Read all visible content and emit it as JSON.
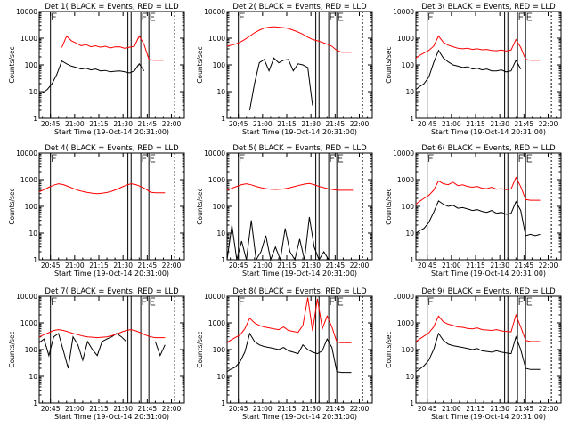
{
  "figure": {
    "ylabel": "Counts/sec",
    "xlabel": "Start Time (19-Oct-14 20:31:00)",
    "xticks": [
      "20:45",
      "21:00",
      "21:15",
      "21:30",
      "21:45",
      "22:00"
    ],
    "yticks": [
      "1",
      "10",
      "100",
      "1000",
      "10000"
    ],
    "colors": {
      "events": "#000000",
      "lld": "#ff0000",
      "axes": "#000000"
    }
  },
  "chart_data": [
    {
      "type": "line",
      "title": "Det 1( BLACK = Events, RED = LLD",
      "yscale": "log",
      "ylim": [
        1,
        10000
      ],
      "x": [
        "20:38",
        "20:40",
        "20:43",
        "20:46",
        "20:49",
        "20:52",
        "20:55",
        "20:58",
        "21:01",
        "21:04",
        "21:07",
        "21:10",
        "21:13",
        "21:16",
        "21:19",
        "21:22",
        "21:25",
        "21:28",
        "21:31",
        "21:34",
        "21:37",
        "21:40",
        "21:43",
        "21:46",
        "21:49",
        "21:52",
        "21:55"
      ],
      "series": [
        {
          "name": "Events",
          "values": [
            8,
            9,
            12,
            20,
            45,
            140,
            110,
            90,
            80,
            70,
            75,
            65,
            70,
            60,
            62,
            55,
            58,
            60,
            55,
            50,
            60,
            110,
            60,
            null,
            null,
            null,
            null
          ]
        },
        {
          "name": "LLD",
          "values": [
            null,
            null,
            null,
            null,
            null,
            450,
            1200,
            800,
            650,
            520,
            580,
            480,
            520,
            460,
            500,
            430,
            470,
            480,
            420,
            460,
            500,
            1200,
            600,
            160,
            150,
            150,
            150
          ]
        }
      ],
      "vlines": [
        "20:45",
        "21:33",
        "21:35",
        "21:41",
        "21:46",
        "22:02"
      ]
    },
    {
      "type": "line",
      "title": "Det 2( BLACK = Events, RED = LLD",
      "yscale": "log",
      "ylim": [
        1,
        10000
      ],
      "x": [
        "20:38",
        "20:43",
        "20:46",
        "20:49",
        "20:52",
        "20:55",
        "20:58",
        "21:01",
        "21:04",
        "21:07",
        "21:10",
        "21:13",
        "21:16",
        "21:19",
        "21:22",
        "21:25",
        "21:28",
        "21:31",
        "21:34",
        "21:37",
        "21:40",
        "21:43",
        "21:46",
        "21:49",
        "21:52",
        "21:55"
      ],
      "series": [
        {
          "name": "Events",
          "values": [
            null,
            null,
            null,
            null,
            2,
            20,
            120,
            160,
            60,
            180,
            120,
            150,
            160,
            60,
            110,
            100,
            80,
            3,
            null,
            null,
            null,
            null,
            null,
            null,
            null,
            null
          ]
        },
        {
          "name": "LLD",
          "values": [
            500,
            600,
            700,
            900,
            1200,
            1600,
            2000,
            2400,
            2600,
            2700,
            2600,
            2500,
            2300,
            2000,
            1700,
            1400,
            1100,
            900,
            800,
            700,
            600,
            500,
            350,
            300,
            300,
            300
          ]
        }
      ],
      "vlines": [
        "20:45",
        "21:33",
        "21:35",
        "21:41",
        "21:46",
        "22:02"
      ]
    },
    {
      "type": "line",
      "title": "Det 3( BLACK = Events, RED = LLD",
      "yscale": "log",
      "ylim": [
        1,
        10000
      ],
      "x": [
        "20:38",
        "20:40",
        "20:43",
        "20:46",
        "20:49",
        "20:52",
        "20:55",
        "20:58",
        "21:01",
        "21:04",
        "21:07",
        "21:10",
        "21:13",
        "21:16",
        "21:19",
        "21:22",
        "21:25",
        "21:28",
        "21:31",
        "21:34",
        "21:37",
        "21:40",
        "21:43",
        "21:46",
        "21:49",
        "21:52",
        "21:55"
      ],
      "series": [
        {
          "name": "Events",
          "values": [
            12,
            15,
            20,
            35,
            120,
            350,
            180,
            130,
            100,
            90,
            80,
            85,
            70,
            75,
            65,
            70,
            60,
            60,
            65,
            55,
            60,
            150,
            70,
            null,
            null,
            null,
            null
          ]
        },
        {
          "name": "LLD",
          "values": [
            180,
            220,
            280,
            350,
            500,
            1200,
            700,
            550,
            480,
            420,
            400,
            420,
            380,
            400,
            370,
            380,
            350,
            340,
            360,
            330,
            360,
            900,
            450,
            160,
            150,
            150,
            150
          ]
        }
      ],
      "vlines": [
        "20:45",
        "21:33",
        "21:35",
        "21:41",
        "21:46",
        "22:02"
      ]
    },
    {
      "type": "line",
      "title": "Det 4( BLACK = Events, RED = LLD",
      "yscale": "log",
      "ylim": [
        1,
        10000
      ],
      "x": [
        "20:38",
        "20:41",
        "20:44",
        "20:47",
        "20:50",
        "20:53",
        "20:56",
        "20:59",
        "21:02",
        "21:05",
        "21:08",
        "21:11",
        "21:14",
        "21:17",
        "21:20",
        "21:23",
        "21:26",
        "21:29",
        "21:32",
        "21:35",
        "21:38",
        "21:41",
        "21:44",
        "21:47",
        "21:50",
        "21:53",
        "21:56"
      ],
      "series": [
        {
          "name": "Events",
          "values": [
            null,
            null,
            null,
            null,
            null,
            null,
            null,
            null,
            null,
            null,
            null,
            null,
            null,
            null,
            null,
            null,
            null,
            null,
            null,
            null,
            null,
            null,
            null,
            null,
            null,
            null,
            null
          ]
        },
        {
          "name": "LLD",
          "values": [
            350,
            420,
            520,
            620,
            700,
            650,
            560,
            470,
            400,
            360,
            330,
            310,
            300,
            310,
            330,
            370,
            430,
            520,
            620,
            700,
            650,
            550,
            450,
            340,
            320,
            320,
            320
          ]
        }
      ],
      "vlines": [
        "20:45",
        "21:33",
        "21:35",
        "21:41",
        "21:46",
        "22:02"
      ]
    },
    {
      "type": "line",
      "title": "Det 5( BLACK = Events, RED = LLD",
      "yscale": "log",
      "ylim": [
        1,
        10000
      ],
      "x": [
        "20:38",
        "20:41",
        "20:44",
        "20:47",
        "20:50",
        "20:53",
        "20:56",
        "20:59",
        "21:02",
        "21:05",
        "21:08",
        "21:11",
        "21:14",
        "21:17",
        "21:20",
        "21:23",
        "21:26",
        "21:29",
        "21:32",
        "21:35",
        "21:38",
        "21:41",
        "21:44",
        "21:47",
        "21:50",
        "21:53",
        "21:56"
      ],
      "series": [
        {
          "name": "Events",
          "values": [
            1,
            20,
            1,
            5,
            1,
            30,
            1,
            2,
            8,
            1,
            3,
            1,
            15,
            2,
            1,
            6,
            1,
            40,
            3,
            1,
            2,
            1,
            null,
            null,
            null,
            null,
            null
          ]
        },
        {
          "name": "LLD",
          "values": [
            400,
            480,
            560,
            650,
            700,
            640,
            560,
            500,
            460,
            440,
            430,
            440,
            460,
            500,
            560,
            620,
            680,
            720,
            650,
            560,
            500,
            450,
            420,
            400,
            400,
            400,
            400
          ]
        }
      ],
      "vlines": [
        "20:45",
        "21:33",
        "21:35",
        "21:41",
        "21:46",
        "22:02"
      ]
    },
    {
      "type": "line",
      "title": "Det 6( BLACK = Events, RED = LLD",
      "yscale": "log",
      "ylim": [
        1,
        10000
      ],
      "x": [
        "20:38",
        "20:40",
        "20:43",
        "20:46",
        "20:49",
        "20:52",
        "20:55",
        "20:58",
        "21:01",
        "21:04",
        "21:07",
        "21:10",
        "21:13",
        "21:16",
        "21:19",
        "21:22",
        "21:25",
        "21:28",
        "21:31",
        "21:34",
        "21:37",
        "21:40",
        "21:43",
        "21:46",
        "21:49",
        "21:52",
        "21:55"
      ],
      "series": [
        {
          "name": "Events",
          "values": [
            10,
            12,
            15,
            25,
            60,
            160,
            120,
            100,
            110,
            85,
            90,
            80,
            70,
            75,
            65,
            60,
            70,
            55,
            60,
            50,
            55,
            150,
            70,
            8,
            9,
            8,
            9
          ]
        },
        {
          "name": "LLD",
          "values": [
            120,
            150,
            200,
            260,
            400,
            900,
            700,
            650,
            800,
            600,
            640,
            560,
            520,
            560,
            480,
            460,
            520,
            440,
            460,
            420,
            450,
            1200,
            550,
            180,
            170,
            170,
            170
          ]
        }
      ],
      "vlines": [
        "20:45",
        "21:33",
        "21:35",
        "21:41",
        "21:46",
        "22:02"
      ]
    },
    {
      "type": "line",
      "title": "Det 7( BLACK = Events, RED = LLD",
      "yscale": "log",
      "ylim": [
        1,
        10000
      ],
      "x": [
        "20:38",
        "20:41",
        "20:44",
        "20:47",
        "20:50",
        "20:53",
        "20:56",
        "20:59",
        "21:02",
        "21:05",
        "21:08",
        "21:11",
        "21:14",
        "21:17",
        "21:20",
        "21:23",
        "21:26",
        "21:29",
        "21:32",
        "21:35",
        "21:38",
        "21:41",
        "21:44",
        "21:47",
        "21:50",
        "21:53",
        "21:56"
      ],
      "series": [
        {
          "name": "Events",
          "values": [
            180,
            250,
            60,
            300,
            400,
            90,
            20,
            300,
            150,
            40,
            200,
            100,
            60,
            200,
            250,
            300,
            400,
            300,
            200,
            null,
            null,
            null,
            null,
            null,
            200,
            60,
            150
          ]
        },
        {
          "name": "LLD",
          "values": [
            300,
            360,
            430,
            520,
            560,
            520,
            460,
            400,
            360,
            320,
            300,
            290,
            280,
            290,
            300,
            330,
            380,
            450,
            520,
            560,
            500,
            420,
            350,
            300,
            280,
            280,
            280
          ]
        }
      ],
      "vlines": [
        "20:45",
        "21:33",
        "21:35",
        "21:41",
        "21:46",
        "22:02"
      ]
    },
    {
      "type": "line",
      "title": "Det 8( BLACK = Events, RED = LLD",
      "yscale": "log",
      "ylim": [
        1,
        10000
      ],
      "x": [
        "20:38",
        "20:40",
        "20:43",
        "20:46",
        "20:49",
        "20:52",
        "20:55",
        "20:58",
        "21:01",
        "21:04",
        "21:07",
        "21:10",
        "21:13",
        "21:16",
        "21:19",
        "21:22",
        "21:25",
        "21:28",
        "21:31",
        "21:34",
        "21:37",
        "21:40",
        "21:43",
        "21:46",
        "21:49",
        "21:52",
        "21:55"
      ],
      "series": [
        {
          "name": "Events",
          "values": [
            15,
            18,
            22,
            35,
            80,
            400,
            200,
            150,
            130,
            120,
            110,
            100,
            120,
            90,
            80,
            70,
            150,
            100,
            80,
            70,
            90,
            250,
            120,
            15,
            14,
            14,
            14
          ]
        },
        {
          "name": "LLD",
          "values": [
            180,
            220,
            280,
            350,
            600,
            1500,
            1000,
            800,
            700,
            650,
            600,
            560,
            700,
            520,
            480,
            440,
            800,
            9000,
            500,
            8000,
            600,
            1800,
            700,
            190,
            180,
            180,
            180
          ]
        }
      ],
      "vlines": [
        "20:45",
        "21:33",
        "21:35",
        "21:41",
        "21:46",
        "22:02"
      ]
    },
    {
      "type": "line",
      "title": "Det 9( BLACK = Events, RED = LLD",
      "yscale": "log",
      "ylim": [
        1,
        10000
      ],
      "x": [
        "20:38",
        "20:40",
        "20:43",
        "20:46",
        "20:49",
        "20:52",
        "20:55",
        "20:58",
        "21:01",
        "21:04",
        "21:07",
        "21:10",
        "21:13",
        "21:16",
        "21:19",
        "21:22",
        "21:25",
        "21:28",
        "21:31",
        "21:34",
        "21:37",
        "21:40",
        "21:43",
        "21:46",
        "21:49",
        "21:52",
        "21:55"
      ],
      "series": [
        {
          "name": "Events",
          "values": [
            15,
            18,
            25,
            40,
            100,
            400,
            220,
            160,
            140,
            130,
            120,
            110,
            100,
            110,
            90,
            85,
            80,
            90,
            80,
            75,
            70,
            300,
            100,
            20,
            18,
            18,
            18
          ]
        },
        {
          "name": "LLD",
          "values": [
            200,
            240,
            320,
            420,
            700,
            1800,
            1100,
            900,
            800,
            700,
            680,
            620,
            600,
            650,
            560,
            540,
            520,
            560,
            500,
            480,
            460,
            2000,
            700,
            220,
            200,
            200,
            200
          ]
        }
      ],
      "vlines": [
        "20:45",
        "21:33",
        "21:35",
        "21:41",
        "21:46",
        "22:02"
      ]
    }
  ]
}
